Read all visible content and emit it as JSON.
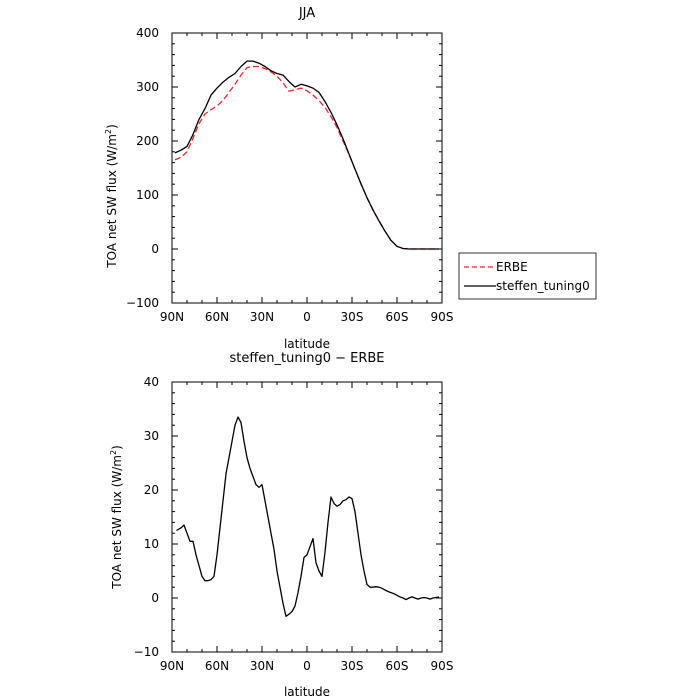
{
  "chart_data": [
    {
      "type": "line",
      "title": "JJA",
      "xlabel": "latitude",
      "ylabel": "TOA net SW flux (W/m",
      "ylabel_sup": "2",
      "ylabel_close": ")",
      "xlim": [
        90,
        -90
      ],
      "ylim": [
        -100,
        400
      ],
      "xticks": [
        90,
        60,
        30,
        0,
        -30,
        -60,
        -90
      ],
      "xtick_labels": [
        "90N",
        "60N",
        "30N",
        "0",
        "30S",
        "60S",
        "90S"
      ],
      "yticks": [
        -100,
        0,
        100,
        200,
        300,
        400
      ],
      "ytick_labels": [
        "−100",
        "0",
        "100",
        "200",
        "300",
        "400"
      ],
      "legend_position": "right",
      "series": [
        {
          "name": "ERBE",
          "color": "#e8282b",
          "dash": "dashed",
          "x": [
            88,
            84,
            80,
            76,
            72,
            68,
            64,
            60,
            56,
            52,
            48,
            44,
            40,
            36,
            32,
            28,
            24,
            20,
            16,
            12,
            8,
            4,
            0,
            -4,
            -8,
            -12,
            -16,
            -20,
            -24,
            -28,
            -32,
            -36,
            -40,
            -44,
            -48,
            -52,
            -56,
            -60,
            -64,
            -68,
            -72,
            -76,
            -80,
            -84,
            -88
          ],
          "y": [
            165,
            170,
            180,
            205,
            232,
            250,
            258,
            265,
            275,
            290,
            305,
            322,
            336,
            338,
            338,
            334,
            328,
            320,
            308,
            292,
            295,
            298,
            293,
            285,
            275,
            262,
            245,
            225,
            200,
            175,
            148,
            120,
            95,
            73,
            52,
            33,
            16,
            5,
            1,
            0,
            0,
            0,
            0,
            0,
            0
          ]
        },
        {
          "name": "steffen_tuning0",
          "color": "#000000",
          "dash": "solid",
          "x": [
            88,
            84,
            80,
            76,
            72,
            68,
            64,
            60,
            56,
            52,
            48,
            44,
            40,
            36,
            32,
            28,
            24,
            20,
            16,
            12,
            8,
            4,
            0,
            -4,
            -8,
            -12,
            -16,
            -20,
            -24,
            -28,
            -32,
            -36,
            -40,
            -44,
            -48,
            -52,
            -56,
            -60,
            -64,
            -68,
            -72,
            -76,
            -80,
            -84,
            -88
          ],
          "y": [
            178,
            183,
            190,
            212,
            240,
            260,
            285,
            298,
            309,
            318,
            325,
            338,
            348,
            348,
            344,
            338,
            330,
            325,
            322,
            310,
            300,
            305,
            302,
            298,
            290,
            273,
            253,
            230,
            204,
            176,
            148,
            121,
            95,
            72,
            52,
            33,
            16,
            5,
            1,
            0,
            0,
            0,
            0,
            0,
            0
          ]
        }
      ]
    },
    {
      "type": "line",
      "title": "steffen_tuning0 − ERBE",
      "xlabel": "latitude",
      "ylabel": "TOA net SW flux (W/m",
      "ylabel_sup": "2",
      "ylabel_close": ")",
      "xlim": [
        90,
        -90
      ],
      "ylim": [
        -10,
        40
      ],
      "xticks": [
        90,
        60,
        30,
        0,
        -30,
        -60,
        -90
      ],
      "xtick_labels": [
        "90N",
        "60N",
        "30N",
        "0",
        "30S",
        "60S",
        "90S"
      ],
      "yticks": [
        -10,
        0,
        10,
        20,
        30,
        40
      ],
      "ytick_labels": [
        "−10",
        "0",
        "10",
        "20",
        "30",
        "40"
      ],
      "series": [
        {
          "color": "#000000",
          "dash": "solid",
          "x": [
            87,
            84,
            82,
            80,
            78,
            76,
            74,
            72,
            70,
            68,
            66,
            64,
            62,
            60,
            58,
            56,
            54,
            52,
            50,
            48,
            46,
            44,
            42,
            40,
            38,
            36,
            34,
            32,
            30,
            28,
            26,
            24,
            22,
            20,
            18,
            16,
            14,
            12,
            10,
            8,
            6,
            4,
            2,
            0,
            -2,
            -4,
            -6,
            -8,
            -10,
            -12,
            -14,
            -16,
            -18,
            -20,
            -22,
            -24,
            -26,
            -28,
            -30,
            -32,
            -34,
            -36,
            -38,
            -40,
            -42,
            -44,
            -46,
            -48,
            -50,
            -52,
            -54,
            -56,
            -58,
            -60,
            -62,
            -64,
            -66,
            -68,
            -70,
            -72,
            -74,
            -76,
            -78,
            -80,
            -82,
            -84,
            -86,
            -88
          ],
          "y": [
            12.5,
            13.0,
            13.5,
            12.0,
            10.5,
            10.5,
            8.0,
            6.0,
            4.0,
            3.2,
            3.2,
            3.4,
            4.0,
            8.0,
            13.0,
            18.0,
            23.0,
            26.0,
            29.0,
            32.0,
            33.5,
            32.5,
            29.0,
            26.0,
            24.0,
            22.5,
            21.0,
            20.5,
            21.0,
            18.0,
            15.0,
            12.0,
            9.0,
            5.0,
            2.0,
            -1.0,
            -3.4,
            -3.0,
            -2.5,
            -1.5,
            1.0,
            4.0,
            7.5,
            8.0,
            9.5,
            11.0,
            6.5,
            5.0,
            4.0,
            8.5,
            14.0,
            18.7,
            17.5,
            17.0,
            17.3,
            18.0,
            18.2,
            18.7,
            18.4,
            16.0,
            12.0,
            8.0,
            5.0,
            2.5,
            2.0,
            2.0,
            2.1,
            2.0,
            1.8,
            1.5,
            1.2,
            1.0,
            0.8,
            0.5,
            0.2,
            0.0,
            -0.3,
            0.0,
            0.2,
            0.0,
            -0.2,
            0.0,
            0.1,
            0.0,
            -0.2,
            0.0,
            0.1,
            0.2
          ]
        }
      ]
    }
  ]
}
